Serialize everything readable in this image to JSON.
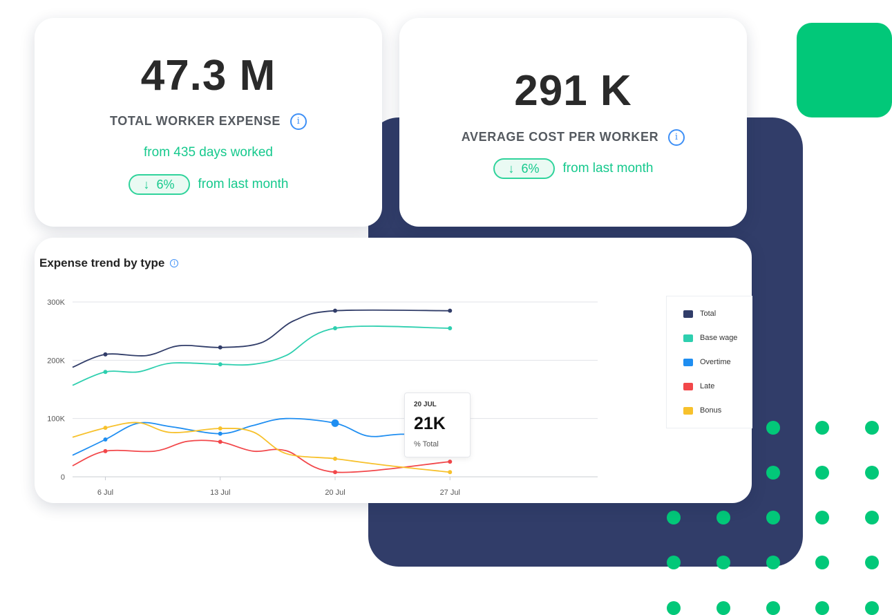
{
  "colors": {
    "navy": "#313d69",
    "green_accent": "#02c879",
    "kpi_green": "#16c98d",
    "info_blue": "#3d8ff6"
  },
  "kpi_total": {
    "value": "47.3 M",
    "label": "TOTAL WORKER EXPENSE",
    "info_icon": "i",
    "sub_text": "from 435 days worked",
    "change": "6%",
    "change_direction": "down",
    "change_arrow": "↓",
    "change_text": "from last month"
  },
  "kpi_average": {
    "value": "291 K",
    "label": "AVERAGE COST PER WORKER",
    "info_icon": "i",
    "change": "6%",
    "change_direction": "down",
    "change_arrow": "↓",
    "change_text": "from last month"
  },
  "chart_card": {
    "title": "Expense trend by type",
    "info_icon": "i"
  },
  "tooltip": {
    "date": "20 JUL",
    "value": "21K",
    "label": "% Total"
  },
  "chart_data": {
    "type": "line",
    "title": "Expense trend by type",
    "xlabel": "",
    "ylabel": "",
    "x_ticks": [
      "6 Jul",
      "13 Jul",
      "20 Jul",
      "27 Jul"
    ],
    "x_tick_days": [
      6,
      13,
      20,
      27
    ],
    "xlim": [
      4,
      36
    ],
    "ylim": [
      0,
      300000
    ],
    "y_ticks": [
      0,
      100000,
      200000,
      300000
    ],
    "y_tick_labels": [
      "0",
      "100K",
      "200K",
      "300K"
    ],
    "grid": true,
    "legend_position": "right",
    "series": [
      {
        "name": "Total",
        "color": "#313d69",
        "x": [
          4,
          6,
          8.5,
          10.5,
          13,
          15.5,
          17.5,
          20,
          27
        ],
        "y": [
          188000,
          210000,
          208000,
          225000,
          222000,
          230000,
          268000,
          285000,
          285000
        ],
        "markers": [
          6,
          13,
          20,
          27
        ]
      },
      {
        "name": "Base wage",
        "color": "#2ecfaf",
        "x": [
          4,
          6,
          8,
          10,
          13,
          15,
          17,
          20,
          27
        ],
        "y": [
          157000,
          180000,
          180000,
          195000,
          193000,
          193000,
          208000,
          255000,
          255000
        ],
        "markers": [
          6,
          13,
          20,
          27
        ]
      },
      {
        "name": "Overtime",
        "color": "#1f8ef1",
        "x": [
          4,
          6,
          8,
          10,
          13,
          15,
          17,
          20,
          22,
          24,
          27
        ],
        "y": [
          37000,
          64000,
          92000,
          86000,
          74000,
          88000,
          100000,
          92000,
          70000,
          73000,
          73000
        ],
        "markers": [
          6,
          13,
          20,
          27
        ]
      },
      {
        "name": "Late",
        "color": "#f2474a",
        "x": [
          4,
          6,
          9,
          11,
          13,
          15,
          17,
          20,
          27
        ],
        "y": [
          19000,
          44000,
          44000,
          61000,
          60000,
          44000,
          45000,
          8000,
          26000
        ],
        "markers": [
          6,
          13,
          20,
          27
        ]
      },
      {
        "name": "Bonus",
        "color": "#f7c12c",
        "x": [
          4,
          6,
          8,
          10,
          13,
          15,
          17,
          20,
          23,
          27
        ],
        "y": [
          68000,
          84000,
          93000,
          76000,
          83000,
          77000,
          40000,
          31000,
          20000,
          8000
        ],
        "markers": [
          6,
          13,
          20,
          27
        ]
      }
    ],
    "highlight": {
      "series": "Overtime",
      "x": 20
    }
  }
}
